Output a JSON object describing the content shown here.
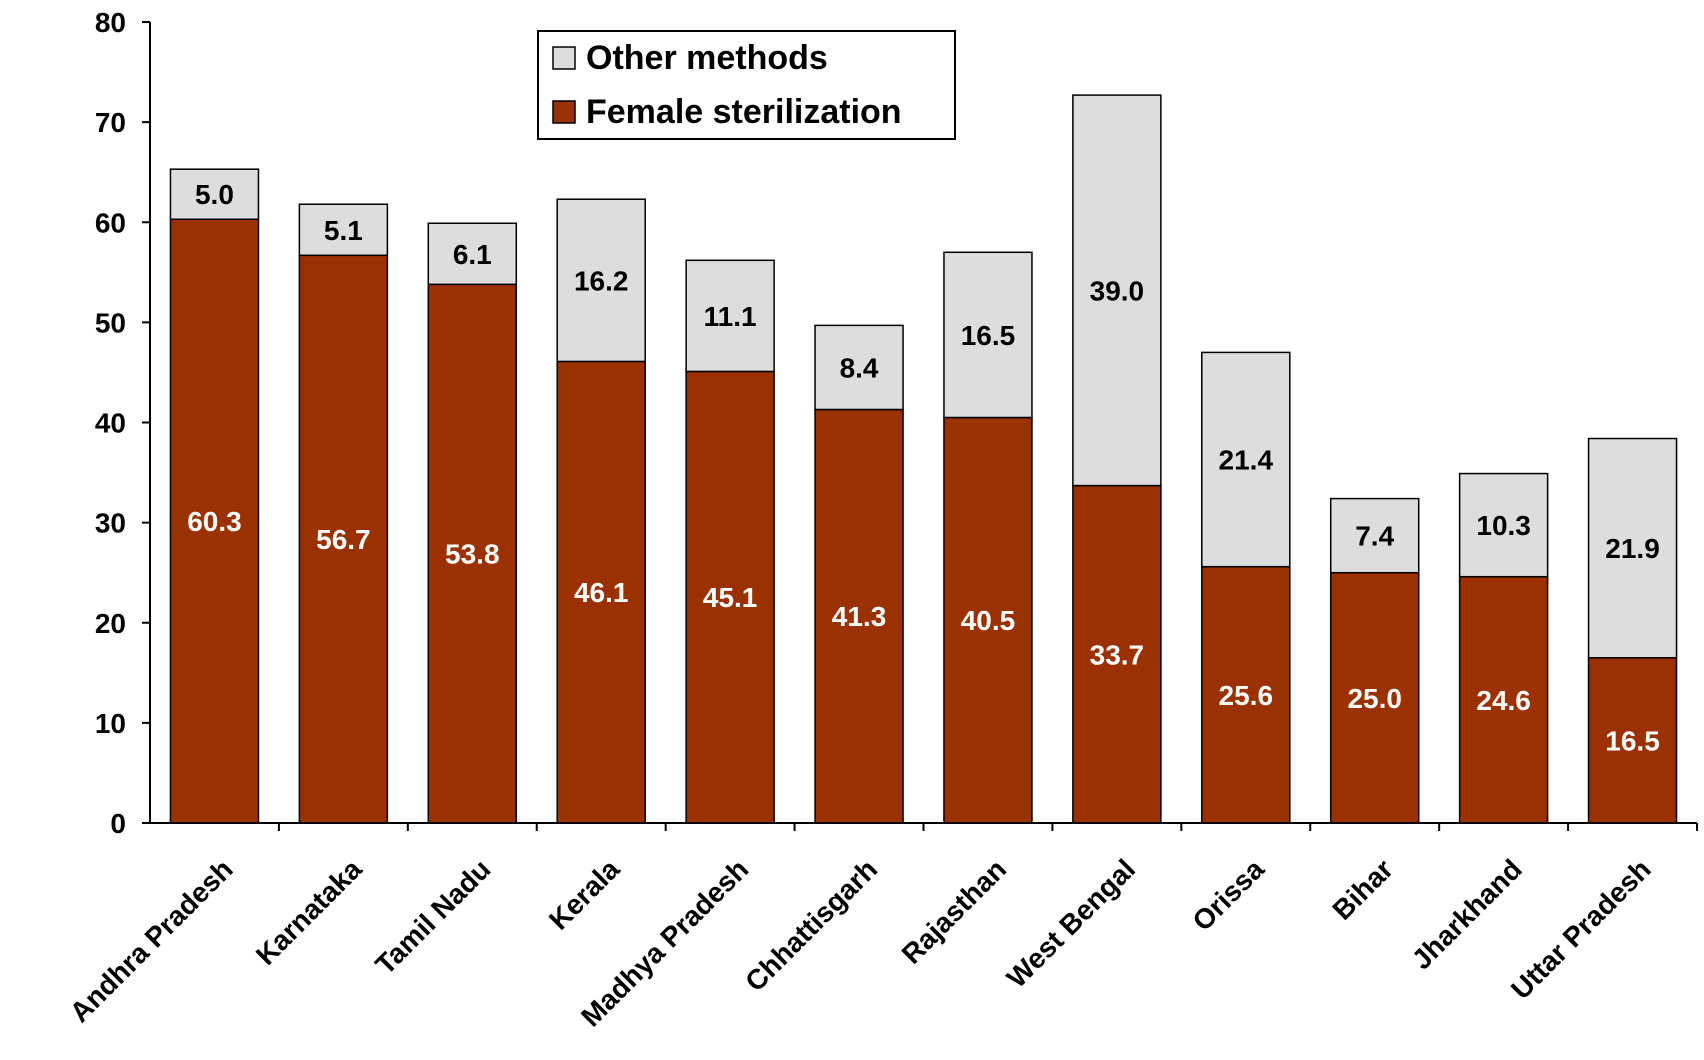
{
  "chart_data": {
    "type": "bar",
    "stacked": true,
    "categories": [
      "Andhra Pradesh",
      "Karnataka",
      "Tamil Nadu",
      "Kerala",
      "Madhya Pradesh",
      "Chhattisgarh",
      "Rajasthan",
      "West Bengal",
      "Orissa",
      "Bihar",
      "Jharkhand",
      "Uttar Pradesh"
    ],
    "series": [
      {
        "name": "Female sterilization",
        "color": "#9b3000",
        "values": [
          60.3,
          56.7,
          53.8,
          46.1,
          45.1,
          41.3,
          40.5,
          33.7,
          25.6,
          25.0,
          24.6,
          16.5
        ]
      },
      {
        "name": "Other methods",
        "color": "#dddddd",
        "values": [
          5.0,
          5.1,
          6.1,
          16.2,
          11.1,
          8.4,
          16.5,
          39.0,
          21.4,
          7.4,
          10.3,
          21.9
        ]
      }
    ],
    "value_labels": {
      "female": [
        "60.3",
        "56.7",
        "53.8",
        "46.1",
        "45.1",
        "41.3",
        "40.5",
        "33.7",
        "25.6",
        "25.0",
        "24.6",
        "16.5"
      ],
      "other": [
        "5.0",
        "5.1",
        "6.1",
        "16.2",
        "11.1",
        "8.4",
        "16.5",
        "39.0",
        "21.4",
        "7.4",
        "10.3",
        "21.9"
      ]
    },
    "yticks": [
      "0",
      "10",
      "20",
      "30",
      "40",
      "50",
      "60",
      "70",
      "80"
    ],
    "ylim": [
      0,
      80
    ],
    "grid": false,
    "legend": {
      "position": "top-center",
      "entries": [
        "Other methods",
        "Female sterilization"
      ]
    },
    "title": "",
    "xlabel": "",
    "ylabel": ""
  }
}
